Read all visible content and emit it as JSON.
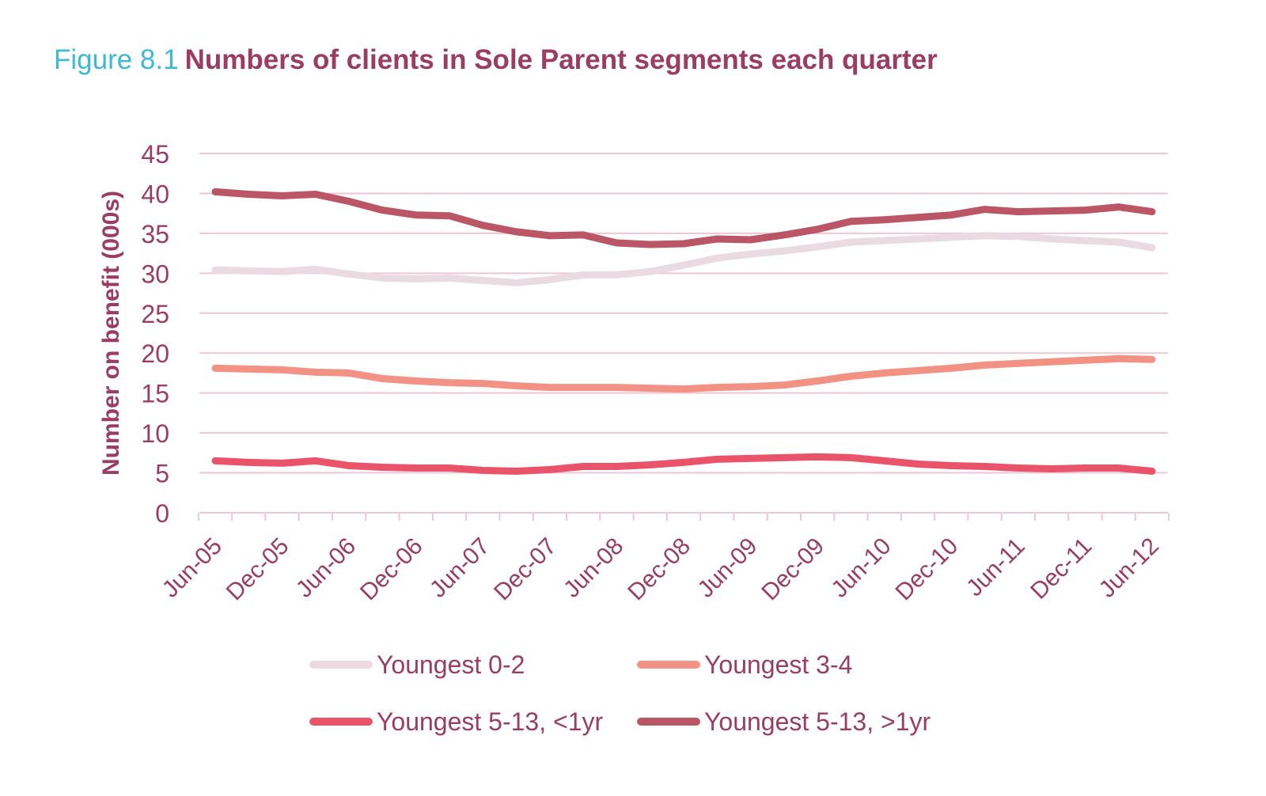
{
  "figure": {
    "number": "Figure 8.1",
    "title": "Numbers of clients in Sole Parent segments each quarter"
  },
  "colors": {
    "axis_text": "#9b3d63",
    "grid": "#ecc7d7",
    "title_number": "#3bb9d6",
    "title_text": "#9b3d63"
  },
  "chart_data": {
    "type": "line",
    "title": "Numbers of clients in Sole Parent segments each quarter",
    "xlabel": "",
    "ylabel": "Number on benefit (000s)",
    "ylim": [
      0,
      45
    ],
    "yticks": [
      0,
      5,
      10,
      15,
      20,
      25,
      30,
      35,
      40,
      45
    ],
    "grid": true,
    "legend_position": "bottom",
    "x_tick_labels": [
      "Jun-05",
      "Dec-05",
      "Jun-06",
      "Dec-06",
      "Jun-07",
      "Dec-07",
      "Jun-08",
      "Dec-08",
      "Jun-09",
      "Dec-09",
      "Jun-10",
      "Dec-10",
      "Jun-11",
      "Dec-11",
      "Jun-12"
    ],
    "categories": [
      "Jun-05",
      "Sep-05",
      "Dec-05",
      "Mar-06",
      "Jun-06",
      "Sep-06",
      "Dec-06",
      "Mar-07",
      "Jun-07",
      "Sep-07",
      "Dec-07",
      "Mar-08",
      "Jun-08",
      "Sep-08",
      "Dec-08",
      "Mar-09",
      "Jun-09",
      "Sep-09",
      "Dec-09",
      "Mar-10",
      "Jun-10",
      "Sep-10",
      "Dec-10",
      "Mar-11",
      "Jun-11",
      "Sep-11",
      "Dec-11",
      "Mar-12",
      "Jun-12"
    ],
    "series": [
      {
        "name": "Youngest 0-2",
        "color": "#eadbe2",
        "values": [
          30.4,
          30.3,
          30.2,
          30.5,
          29.9,
          29.4,
          29.3,
          29.4,
          29.1,
          28.8,
          29.2,
          29.8,
          29.8,
          30.2,
          31.0,
          31.9,
          32.4,
          32.8,
          33.3,
          33.9,
          34.1,
          34.3,
          34.5,
          34.7,
          34.6,
          34.3,
          34.1,
          33.9,
          33.2
        ]
      },
      {
        "name": "Youngest 3-4",
        "color": "#f19284",
        "values": [
          18.1,
          18.0,
          17.9,
          17.6,
          17.5,
          16.8,
          16.5,
          16.3,
          16.2,
          15.9,
          15.7,
          15.7,
          15.7,
          15.6,
          15.5,
          15.7,
          15.8,
          16.0,
          16.5,
          17.1,
          17.5,
          17.8,
          18.1,
          18.5,
          18.7,
          18.9,
          19.1,
          19.3,
          19.2
        ]
      },
      {
        "name": "Youngest 5-13, <1yr",
        "color": "#e9546a",
        "values": [
          6.5,
          6.3,
          6.2,
          6.5,
          5.9,
          5.7,
          5.6,
          5.6,
          5.3,
          5.2,
          5.4,
          5.8,
          5.8,
          6.0,
          6.3,
          6.7,
          6.8,
          6.9,
          7.0,
          6.9,
          6.5,
          6.1,
          5.9,
          5.8,
          5.6,
          5.5,
          5.6,
          5.6,
          5.2
        ]
      },
      {
        "name": "Youngest 5-13, >1yr",
        "color": "#bb5666",
        "values": [
          40.2,
          39.9,
          39.7,
          39.9,
          39.0,
          37.9,
          37.3,
          37.2,
          36.0,
          35.2,
          34.7,
          34.8,
          33.8,
          33.6,
          33.7,
          34.3,
          34.2,
          34.8,
          35.5,
          36.5,
          36.7,
          37.0,
          37.3,
          38.0,
          37.7,
          37.8,
          37.9,
          38.3,
          37.7
        ]
      }
    ]
  }
}
